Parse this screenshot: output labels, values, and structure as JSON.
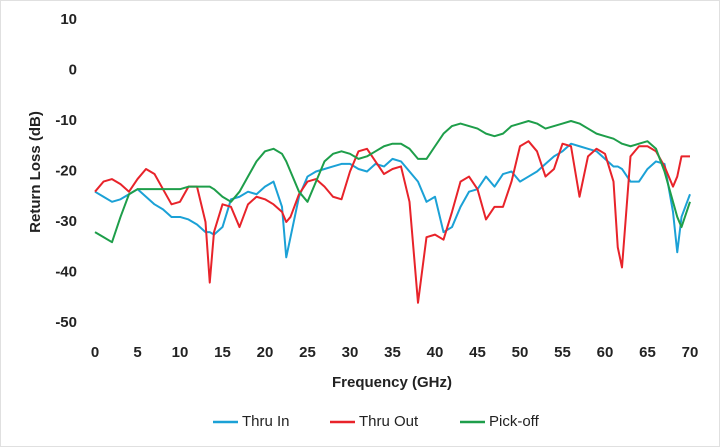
{
  "chart_data": {
    "type": "line",
    "xlabel": "Frequency (GHz)",
    "ylabel": "Return Loss (dB)",
    "x": [
      0,
      1,
      2,
      3,
      4,
      5,
      6,
      7,
      8,
      9,
      10,
      11,
      12,
      13,
      13.5,
      14,
      15,
      16,
      17,
      18,
      19,
      20,
      21,
      22,
      22.5,
      23,
      24,
      25,
      26,
      27,
      28,
      29,
      30,
      31,
      32,
      33,
      34,
      35,
      36,
      37,
      38,
      39,
      40,
      41,
      42,
      43,
      44,
      45,
      46,
      47,
      48,
      49,
      50,
      51,
      52,
      53,
      54,
      55,
      56,
      57,
      58,
      59,
      60,
      61,
      61.5,
      62,
      63,
      64,
      65,
      66,
      67,
      68,
      68.5,
      69,
      70
    ],
    "series": [
      {
        "name": "Thru In",
        "color": "#1ba1d6",
        "values": [
          -24,
          -25,
          -26,
          -25.5,
          -24.5,
          -23.5,
          -25,
          -26.5,
          -27.5,
          -29,
          -29,
          -29.5,
          -30.5,
          -32,
          -32,
          -32.5,
          -31,
          -25.5,
          -25,
          -24,
          -24.5,
          -23,
          -22,
          -27,
          -37,
          -33,
          -25,
          -21,
          -20,
          -19.5,
          -19,
          -18.5,
          -18.5,
          -19.5,
          -20,
          -18.5,
          -19,
          -17.5,
          -18,
          -20,
          -22,
          -26,
          -25,
          -32,
          -31,
          -27,
          -24,
          -23.5,
          -21,
          -23,
          -20.5,
          -20,
          -22,
          -21,
          -20,
          -18.5,
          -17,
          -16,
          -14.5,
          -15,
          -15.5,
          -16,
          -17.5,
          -19,
          -19,
          -19.5,
          -22,
          -22,
          -19.5,
          -18,
          -18.5,
          -28,
          -36,
          -29,
          -24.5
        ]
      },
      {
        "name": "Thru Out",
        "color": "#e8232a",
        "values": [
          -24,
          -22,
          -21.5,
          -22.5,
          -24,
          -21.5,
          -19.5,
          -20.5,
          -23.5,
          -26.5,
          -26,
          -23,
          -23,
          -30,
          -42,
          -32,
          -26.5,
          -27,
          -31,
          -26.5,
          -25,
          -25.5,
          -26.5,
          -28,
          -30,
          -29,
          -24.5,
          -22,
          -21.5,
          -23,
          -25,
          -25.5,
          -20,
          -16,
          -15.5,
          -18,
          -20.5,
          -19.5,
          -19,
          -26,
          -46,
          -33,
          -32.5,
          -33.5,
          -28,
          -22,
          -21,
          -23.5,
          -29.5,
          -27,
          -27,
          -22,
          -15,
          -14,
          -16,
          -21,
          -19.5,
          -14.5,
          -15,
          -25,
          -17,
          -15.5,
          -16.5,
          -22,
          -35,
          -39,
          -17,
          -15,
          -15,
          -16,
          -19,
          -23,
          -21,
          -17,
          -17
        ]
      },
      {
        "name": "Pick-off",
        "color": "#1e9e4a",
        "values": [
          -32,
          -33,
          -34,
          -29,
          -24.5,
          -23.5,
          -23.5,
          -23.5,
          -23.5,
          -23.5,
          -23.5,
          -23,
          -23,
          -23,
          -23,
          -23.5,
          -25,
          -26,
          -24,
          -21,
          -18,
          -16,
          -15.5,
          -16.5,
          -18,
          -20,
          -24,
          -26,
          -22,
          -18,
          -16.5,
          -16,
          -16.5,
          -17.5,
          -17,
          -16,
          -15,
          -14.5,
          -14.5,
          -15.5,
          -17.5,
          -17.5,
          -15,
          -12.5,
          -11,
          -10.5,
          -11,
          -11.5,
          -12.5,
          -13,
          -12.5,
          -11,
          -10.5,
          -10,
          -10.5,
          -11.5,
          -11,
          -10.5,
          -10,
          -10.5,
          -11.5,
          -12.5,
          -13,
          -13.5,
          -14,
          -14.5,
          -15,
          -14.5,
          -14,
          -15.5,
          -20,
          -26,
          -29,
          -31,
          -26
        ]
      }
    ],
    "xlim": [
      0,
      70
    ],
    "xticks": [
      0,
      5,
      10,
      15,
      20,
      25,
      30,
      35,
      40,
      45,
      50,
      55,
      60,
      65,
      70
    ],
    "ylim": [
      -50,
      10
    ],
    "yticks": [
      10,
      0,
      -10,
      -20,
      -30,
      -40,
      -50
    ],
    "grid": false,
    "legend": "bottom"
  }
}
